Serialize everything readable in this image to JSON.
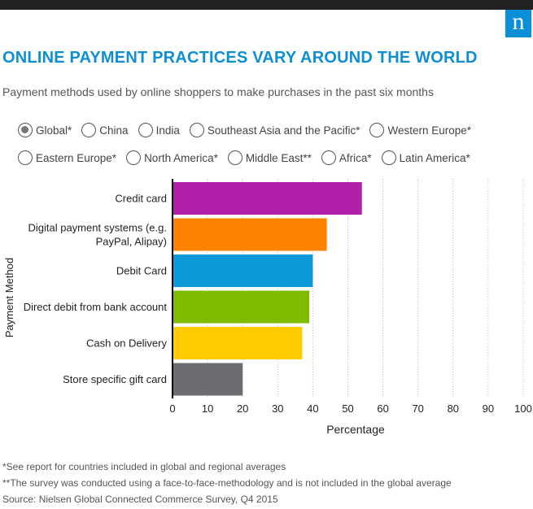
{
  "header": {
    "logo_text": "n",
    "logo_color": "#0b8fd6",
    "title": "ONLINE PAYMENT PRACTICES VARY AROUND THE WORLD",
    "title_color": "#0e8fd3",
    "subtitle": "Payment methods used by online shoppers to make purchases in the past six months"
  },
  "regions": {
    "selected": "Global*",
    "row1": [
      "Global*",
      "China",
      "India",
      "Southeast Asia and the Pacific*",
      "Western Europe*"
    ],
    "row2": [
      "Eastern Europe*",
      "North America*",
      "Middle East**",
      "Africa*",
      "Latin America*"
    ]
  },
  "chart_data": {
    "type": "bar",
    "orientation": "horizontal",
    "categories": [
      [
        "Credit card"
      ],
      [
        "Digital payment systems (e.g.",
        "PayPal, Alipay)"
      ],
      [
        "Debit Card"
      ],
      [
        "Direct debit from bank account"
      ],
      [
        "Cash on Delivery"
      ],
      [
        "Store specific gift card"
      ]
    ],
    "values": [
      54,
      44,
      40,
      39,
      37,
      20
    ],
    "colors": [
      "#b01fa8",
      "#ff8100",
      "#0d9ad8",
      "#7fbc00",
      "#ffcc00",
      "#6c6d70"
    ],
    "xlabel": "Percentage",
    "ylabel": "Payment Method",
    "xlim": [
      0,
      100
    ],
    "xticks": [
      "0",
      "10",
      "20",
      "30",
      "40",
      "50",
      "60",
      "70",
      "80",
      "90",
      "100"
    ],
    "grid": "vertical dotted"
  },
  "footnotes": [
    "*See report for countries included in global and regional averages",
    "**The survey was conducted using a face-to-face-methodology and is not included in the global average",
    "Source: Nielsen Global Connected Commerce Survey, Q4 2015"
  ]
}
